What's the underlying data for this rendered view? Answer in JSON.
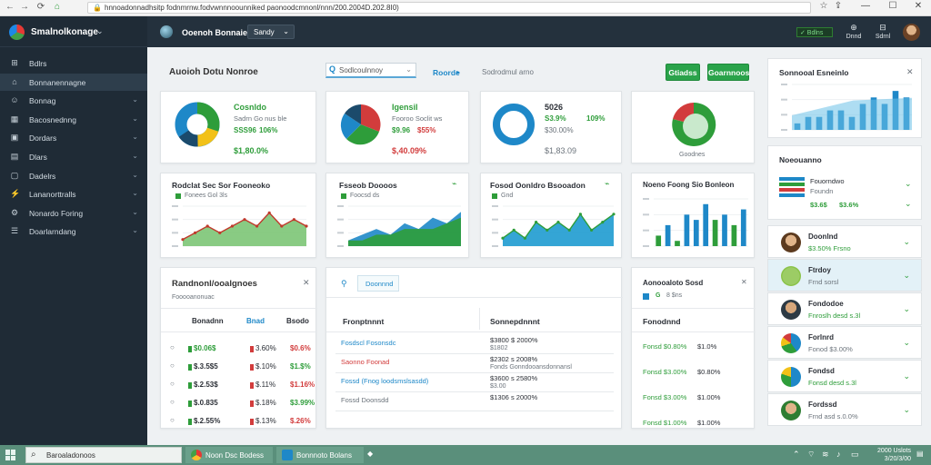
{
  "browser": {
    "url": "hnnoadonnadhsitp fodnmrnw.fodvwnnnoounniked paonoodcmnonl/nnn/200.2004D.202.8I0)",
    "nav_back": "←",
    "nav_forward": "→",
    "nav_reload": "⟳",
    "nav_home": "⌂",
    "win_min": "—",
    "win_max": "☐",
    "win_close": "✕"
  },
  "sidebar": {
    "brand": "Smalnolkonage",
    "brand_caret": "⌄",
    "items": [
      {
        "label": "Bdlrs",
        "icon": "dashboard-icon"
      },
      {
        "label": "Bonnanennagne",
        "icon": "home-icon",
        "active": true
      },
      {
        "label": "Bonnag",
        "icon": "user-icon"
      },
      {
        "label": "Bacosnednng",
        "icon": "chart-icon"
      },
      {
        "label": "Dordars",
        "icon": "folder-icon"
      },
      {
        "label": "Dlars",
        "icon": "calendar-icon"
      },
      {
        "label": "Dadelrs",
        "icon": "document-icon"
      },
      {
        "label": "Lananorttralls",
        "icon": "pulse-icon"
      },
      {
        "label": "Nonardo Foring",
        "icon": "settings-icon"
      },
      {
        "label": "Doarlarndang",
        "icon": "list-icon"
      }
    ]
  },
  "header": {
    "title": "Ooenoh Bonnaie",
    "select": "Sandy",
    "status": "✓ Bdlns",
    "icons": [
      {
        "glyph": "⊕",
        "label": "Dnnd"
      },
      {
        "glyph": "⊟",
        "label": "Sdrnl"
      }
    ]
  },
  "toolbar": {
    "title": "Auoioh Dotu Nonroe",
    "search": "Sodlcoulnnoy",
    "link": "Roorde",
    "link_caret": "▸",
    "filter": "Sodrodmul arno",
    "btn1": "Gtiadss",
    "btn2": "Goarnnoos"
  },
  "kpis": [
    {
      "title": "Cosnldo",
      "line1": "Sadrn Go nus ble",
      "pct1": "SSS96",
      "pct2": "106%",
      "value": "$1,80.0%"
    },
    {
      "title": "Igensil",
      "line1": "Fooroo Soclit ws",
      "pct1": "$9.96",
      "pct2": "$55%",
      "value": "$,40.09%"
    },
    {
      "title": "5026",
      "pct1": "S3.9%",
      "pct2": "109%",
      "line1": "$30.00%",
      "value": "$1,83.09"
    },
    {
      "legend": "Goodnes"
    }
  ],
  "charts": [
    {
      "title": "Rodclat Sec Sor Fooneoko",
      "legend": "Fonees Gol 3ls"
    },
    {
      "title": "Fsseob Doooos",
      "legend": "Foocsd ds"
    },
    {
      "title": "Fosod Oonldro Bsooadon",
      "legend": "Gnd"
    },
    {
      "title": "Noeno Foong Sio Bonleon"
    }
  ],
  "chart_data": [
    {
      "type": "area",
      "title": "Rodclat Sec Sor Fooneoko",
      "values": [
        1,
        2,
        3,
        2,
        3,
        4,
        3,
        5,
        3,
        4,
        3
      ],
      "ylim": [
        0,
        6
      ]
    },
    {
      "type": "area",
      "title": "Fsseob Doooos",
      "series": [
        {
          "values": [
            1,
            2,
            3,
            2,
            4,
            3,
            5,
            4,
            6
          ]
        },
        {
          "values": [
            1,
            1,
            2,
            2,
            3,
            3,
            3,
            4,
            5
          ]
        }
      ],
      "ylim": [
        0,
        7
      ]
    },
    {
      "type": "area",
      "title": "Fosod Oonldro Bsooadon",
      "values": [
        1,
        2,
        1,
        3,
        2,
        3,
        2,
        4,
        2,
        3,
        4
      ],
      "ylim": [
        0,
        5
      ]
    },
    {
      "type": "bar",
      "title": "Noeno Foong Sio Bonleon",
      "values": [
        2,
        4,
        1,
        6,
        5,
        8,
        5,
        6,
        4,
        7
      ],
      "colors": [
        "#2e9d3a",
        "#1e88c8",
        "#2e9d3a",
        "#1e88c8",
        "#1e88c8",
        "#1e88c8",
        "#2e9d3a",
        "#1e88c8",
        "#2e9d3a",
        "#1e88c8"
      ],
      "ylim": [
        0,
        9
      ]
    }
  ],
  "table_left": {
    "title": "Randnonl/ooalgnoes",
    "subtitle": "Fooooanonuac",
    "headers": [
      "Bonadnn",
      "Bnad",
      "Bsodo"
    ],
    "rows": [
      {
        "a": "$0.06$",
        "b": "3.60%",
        "c": "$0.6%"
      },
      {
        "a": "$.3.5$5",
        "b": "$.10%",
        "c": "$1.$%"
      },
      {
        "a": "$.2.53$",
        "b": "$.11%",
        "c": "$1.16%"
      },
      {
        "a": "$.0.835",
        "b": "$.18%",
        "c": "$3.99%"
      },
      {
        "a": "$.2.55%",
        "b": "$.13%",
        "c": "$.26%"
      }
    ]
  },
  "table_mid": {
    "tab": "Doonnnd",
    "headers": [
      "Fronptnnnt",
      "Sonnepdnnnt"
    ],
    "rows": [
      {
        "a": "Fosdscl Fosonsdc",
        "b": "$3800 $ 2000%",
        "b2": "$1802"
      },
      {
        "a": "Saonno   Foonad",
        "b": "$2302 s 2008%",
        "b2": "Fonds Gonndooansdonnansl"
      },
      {
        "a": "Fossd   (Fnog loodsmslsasdd)",
        "b": "$3600 s 2580%",
        "b2": "$3.00"
      },
      {
        "a": "Fossd   Doonsdd",
        "b": "$1306 s 2000%",
        "b2": ""
      }
    ]
  },
  "table_right": {
    "title": "Aonooaloto Sosd",
    "sub1": "G",
    "sub2": "8 $ns",
    "header": "Fonodnnd",
    "rows": [
      {
        "a": "Fonsd $0.80%",
        "b": "$1.0%"
      },
      {
        "a": "Fonsd $3.00%",
        "b": "$0.80%"
      },
      {
        "a": "Fonsd $3.00%",
        "b": "$1.00%"
      },
      {
        "a": "Fonsd $1.00%",
        "b": "$1.00%"
      }
    ]
  },
  "right_panel": {
    "title": "Sonnooal Esneinlo",
    "close": "✕",
    "chart2": {
      "title": "Noeouanno",
      "l1": "Fouorndwo",
      "l2": "Foundn",
      "v1": "$3.6$",
      "v2": "$3.6%"
    },
    "rows": [
      {
        "name": "Doonlnd",
        "stat": "$3.50%  Frsno"
      },
      {
        "name": "Ftrdoy",
        "stat": "Frnd sorsl"
      },
      {
        "name": "Fondodoe",
        "stat": "Fnroslh desd s.3l"
      },
      {
        "name": "Forlnrd",
        "stat": "Fonod $3.00%"
      },
      {
        "name": "Fondsd",
        "stat": "Fonsd desd s.3l"
      },
      {
        "name": "Fordssd",
        "stat": "Frnd asd s.0.0%"
      }
    ]
  },
  "right_chart_data": {
    "type": "bar",
    "values": [
      1,
      2,
      2,
      3,
      3,
      2,
      4,
      5,
      4,
      6,
      5
    ],
    "ylim": [
      0,
      7
    ]
  },
  "taskbar": {
    "search": "Baroaladonoos",
    "app1": "Noon Dsc Bodess",
    "app2": "Bonnnoto Bolans",
    "time": "2000 Uslots",
    "date": "3/20/3/00"
  }
}
